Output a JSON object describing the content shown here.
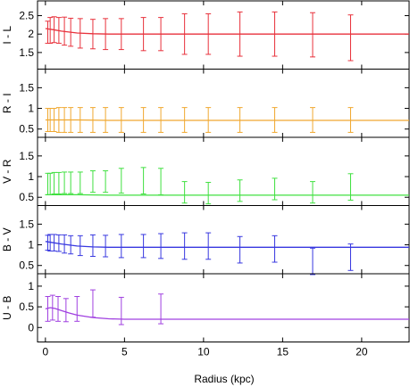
{
  "chart_data": [
    {
      "type": "line",
      "ylabel": "I - L",
      "color": "#e8323c",
      "ylim": [
        1.05,
        2.9
      ],
      "yticks": [
        1.5,
        2.0,
        2.5
      ],
      "ytick_labels": [
        "1.5",
        "2",
        "2.5"
      ],
      "curve": {
        "x": [
          0,
          0.5,
          1,
          2,
          3,
          4,
          6,
          8,
          10,
          15,
          20,
          23
        ],
        "y": [
          2.15,
          2.12,
          2.08,
          2.03,
          2.01,
          2.0,
          2.0,
          2.0,
          2.0,
          2.0,
          2.0,
          2.0
        ]
      },
      "errorbars": [
        {
          "x": 0.15,
          "y": 2.05,
          "err": 0.3
        },
        {
          "x": 0.3,
          "y": 2.1,
          "err": 0.35
        },
        {
          "x": 0.55,
          "y": 2.12,
          "err": 0.35
        },
        {
          "x": 0.85,
          "y": 2.1,
          "err": 0.35
        },
        {
          "x": 1.2,
          "y": 2.08,
          "err": 0.38
        },
        {
          "x": 1.6,
          "y": 2.05,
          "err": 0.38
        },
        {
          "x": 2.2,
          "y": 2.02,
          "err": 0.4
        },
        {
          "x": 3.0,
          "y": 2.0,
          "err": 0.4
        },
        {
          "x": 3.8,
          "y": 2.0,
          "err": 0.42
        },
        {
          "x": 4.8,
          "y": 2.0,
          "err": 0.42
        },
        {
          "x": 6.2,
          "y": 2.0,
          "err": 0.45
        },
        {
          "x": 7.3,
          "y": 2.0,
          "err": 0.45
        },
        {
          "x": 8.8,
          "y": 2.0,
          "err": 0.55
        },
        {
          "x": 10.3,
          "y": 2.0,
          "err": 0.55
        },
        {
          "x": 12.3,
          "y": 2.0,
          "err": 0.6
        },
        {
          "x": 14.5,
          "y": 2.0,
          "err": 0.6
        },
        {
          "x": 16.9,
          "y": 1.98,
          "err": 0.6
        },
        {
          "x": 19.3,
          "y": 1.9,
          "err": 0.62
        }
      ]
    },
    {
      "type": "line",
      "ylabel": "R - I",
      "color": "#f0a830",
      "ylim": [
        0.3,
        1.95
      ],
      "yticks": [
        0.5,
        1.0,
        1.5
      ],
      "ytick_labels": [
        "0.5",
        "1",
        "1.5"
      ],
      "curve": {
        "x": [
          0,
          1,
          2,
          4,
          8,
          12,
          16,
          20,
          23
        ],
        "y": [
          0.72,
          0.72,
          0.72,
          0.71,
          0.71,
          0.71,
          0.71,
          0.71,
          0.71
        ]
      },
      "errorbars": [
        {
          "x": 0.15,
          "y": 0.72,
          "err": 0.28
        },
        {
          "x": 0.3,
          "y": 0.72,
          "err": 0.28
        },
        {
          "x": 0.55,
          "y": 0.72,
          "err": 0.28
        },
        {
          "x": 0.85,
          "y": 0.72,
          "err": 0.3
        },
        {
          "x": 1.2,
          "y": 0.72,
          "err": 0.3
        },
        {
          "x": 1.6,
          "y": 0.72,
          "err": 0.3
        },
        {
          "x": 2.2,
          "y": 0.72,
          "err": 0.3
        },
        {
          "x": 3.0,
          "y": 0.72,
          "err": 0.3
        },
        {
          "x": 3.8,
          "y": 0.72,
          "err": 0.3
        },
        {
          "x": 4.8,
          "y": 0.72,
          "err": 0.3
        },
        {
          "x": 6.2,
          "y": 0.72,
          "err": 0.3
        },
        {
          "x": 7.3,
          "y": 0.72,
          "err": 0.3
        },
        {
          "x": 8.8,
          "y": 0.72,
          "err": 0.3
        },
        {
          "x": 10.3,
          "y": 0.72,
          "err": 0.3
        },
        {
          "x": 12.3,
          "y": 0.72,
          "err": 0.3
        },
        {
          "x": 14.5,
          "y": 0.72,
          "err": 0.3
        },
        {
          "x": 16.9,
          "y": 0.72,
          "err": 0.3
        },
        {
          "x": 19.3,
          "y": 0.72,
          "err": 0.3
        }
      ]
    },
    {
      "type": "line",
      "ylabel": "V - R",
      "color": "#40e040",
      "ylim": [
        0.3,
        1.95
      ],
      "yticks": [
        0.5,
        1.0,
        1.5
      ],
      "ytick_labels": [
        "0.5",
        "1",
        "1.5"
      ],
      "curve": {
        "x": [
          0,
          1,
          2,
          4,
          8,
          12,
          16,
          20,
          23
        ],
        "y": [
          0.56,
          0.56,
          0.56,
          0.55,
          0.55,
          0.55,
          0.55,
          0.55,
          0.55
        ]
      },
      "errorbars": [
        {
          "x": 0.15,
          "y": 0.82,
          "err": 0.26
        },
        {
          "x": 0.3,
          "y": 0.82,
          "err": 0.26
        },
        {
          "x": 0.55,
          "y": 0.84,
          "err": 0.26
        },
        {
          "x": 0.85,
          "y": 0.84,
          "err": 0.26
        },
        {
          "x": 1.2,
          "y": 0.85,
          "err": 0.26
        },
        {
          "x": 1.6,
          "y": 0.85,
          "err": 0.26
        },
        {
          "x": 2.2,
          "y": 0.85,
          "err": 0.26
        },
        {
          "x": 3.0,
          "y": 0.88,
          "err": 0.26
        },
        {
          "x": 3.8,
          "y": 0.88,
          "err": 0.26
        },
        {
          "x": 4.8,
          "y": 0.9,
          "err": 0.3
        },
        {
          "x": 6.2,
          "y": 0.9,
          "err": 0.32
        },
        {
          "x": 7.3,
          "y": 0.88,
          "err": 0.32
        },
        {
          "x": 8.8,
          "y": 0.62,
          "err": 0.26
        },
        {
          "x": 10.3,
          "y": 0.6,
          "err": 0.26
        },
        {
          "x": 12.3,
          "y": 0.66,
          "err": 0.26
        },
        {
          "x": 14.5,
          "y": 0.7,
          "err": 0.26
        },
        {
          "x": 16.9,
          "y": 0.62,
          "err": 0.26
        },
        {
          "x": 19.3,
          "y": 0.75,
          "err": 0.32
        }
      ]
    },
    {
      "type": "line",
      "ylabel": "B - V",
      "color": "#3838e0",
      "ylim": [
        0.3,
        1.95
      ],
      "yticks": [
        0.5,
        1.0,
        1.5
      ],
      "ytick_labels": [
        "0.5",
        "1",
        "1.5"
      ],
      "curve": {
        "x": [
          0,
          0.5,
          1,
          2,
          3,
          4,
          6,
          10,
          15,
          20,
          23
        ],
        "y": [
          1.08,
          1.05,
          1.02,
          0.97,
          0.95,
          0.94,
          0.94,
          0.94,
          0.94,
          0.94,
          0.94
        ]
      },
      "errorbars": [
        {
          "x": 0.15,
          "y": 1.05,
          "err": 0.18
        },
        {
          "x": 0.3,
          "y": 1.05,
          "err": 0.2
        },
        {
          "x": 0.55,
          "y": 1.05,
          "err": 0.2
        },
        {
          "x": 0.85,
          "y": 1.04,
          "err": 0.2
        },
        {
          "x": 1.2,
          "y": 1.02,
          "err": 0.22
        },
        {
          "x": 1.6,
          "y": 1.0,
          "err": 0.22
        },
        {
          "x": 2.2,
          "y": 0.98,
          "err": 0.24
        },
        {
          "x": 3.0,
          "y": 0.98,
          "err": 0.26
        },
        {
          "x": 3.8,
          "y": 0.97,
          "err": 0.26
        },
        {
          "x": 4.8,
          "y": 0.97,
          "err": 0.28
        },
        {
          "x": 6.2,
          "y": 0.97,
          "err": 0.28
        },
        {
          "x": 7.3,
          "y": 0.97,
          "err": 0.3
        },
        {
          "x": 8.8,
          "y": 0.97,
          "err": 0.32
        },
        {
          "x": 10.3,
          "y": 0.97,
          "err": 0.32
        },
        {
          "x": 12.3,
          "y": 0.88,
          "err": 0.32
        },
        {
          "x": 14.5,
          "y": 0.9,
          "err": 0.32
        },
        {
          "x": 16.9,
          "y": 0.6,
          "err": 0.32
        },
        {
          "x": 19.3,
          "y": 0.7,
          "err": 0.32
        }
      ]
    },
    {
      "type": "line",
      "ylabel": "U - B",
      "color": "#a040e0",
      "ylim": [
        -0.35,
        1.3
      ],
      "yticks": [
        0.0,
        0.5,
        1.0
      ],
      "ytick_labels": [
        "0",
        "0.5",
        "1"
      ],
      "curve": {
        "x": [
          0,
          0.3,
          0.6,
          1,
          1.5,
          2,
          3,
          4,
          5,
          6,
          8,
          10,
          15,
          20,
          23
        ],
        "y": [
          0.45,
          0.48,
          0.46,
          0.41,
          0.35,
          0.3,
          0.24,
          0.21,
          0.2,
          0.2,
          0.2,
          0.2,
          0.2,
          0.2,
          0.2
        ]
      },
      "errorbars": [
        {
          "x": 0.15,
          "y": 0.45,
          "err": 0.3
        },
        {
          "x": 0.45,
          "y": 0.48,
          "err": 0.3
        },
        {
          "x": 0.8,
          "y": 0.45,
          "err": 0.3
        },
        {
          "x": 1.3,
          "y": 0.42,
          "err": 0.28
        },
        {
          "x": 2.0,
          "y": 0.45,
          "err": 0.3
        },
        {
          "x": 3.0,
          "y": 0.58,
          "err": 0.33
        },
        {
          "x": 4.8,
          "y": 0.4,
          "err": 0.33
        },
        {
          "x": 7.3,
          "y": 0.45,
          "err": 0.36
        }
      ]
    }
  ],
  "xaxis": {
    "label": "Radius (kpc)",
    "xlim": [
      -0.5,
      23
    ],
    "ticks": [
      0,
      5,
      10,
      15,
      20
    ],
    "tick_labels": [
      "0",
      "5",
      "10",
      "15",
      "20"
    ]
  }
}
